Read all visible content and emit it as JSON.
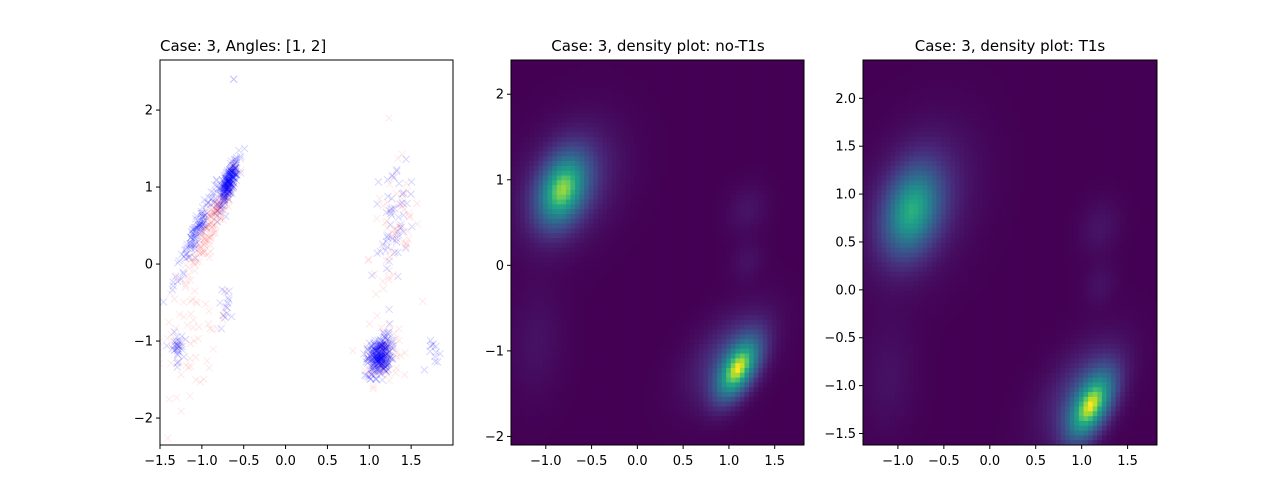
{
  "colors": {
    "series_red": "#ff0000",
    "series_blue": "#0000ff",
    "density_low": "#440154",
    "density_mid": "#21918c",
    "density_high": "#fde725"
  },
  "chart_data": [
    {
      "type": "scatter",
      "title": "Case: 3, Angles: [1, 2]",
      "xlabel": "",
      "ylabel": "",
      "xlim": [
        -1.5,
        2.0
      ],
      "ylim": [
        -2.35,
        2.65
      ],
      "xticks": [
        -1.5,
        -1.0,
        -0.5,
        0.0,
        0.5,
        1.0,
        1.5
      ],
      "xtick_labels": [
        "−1.5",
        "−1.0",
        "−0.5",
        "0.0",
        "0.5",
        "1.0",
        "1.5"
      ],
      "yticks": [
        -2,
        -1,
        0,
        1,
        2
      ],
      "ytick_labels": [
        "−2",
        "−1",
        "0",
        "1",
        "2"
      ],
      "marker": "x",
      "series": [
        {
          "color": "#ff0000",
          "clusters": [
            {
              "cx": -0.85,
              "cy": 0.6,
              "sx": 0.15,
              "sy": 0.35,
              "rho": 0.93,
              "n": 160
            },
            {
              "cx": 1.15,
              "cy": -1.2,
              "sx": 0.1,
              "sy": 0.17,
              "rho": 0.2,
              "n": 80
            },
            {
              "cx": -1.15,
              "cy": -0.85,
              "sx": 0.25,
              "sy": 0.4,
              "rho": 0.2,
              "n": 70
            },
            {
              "cx": 1.3,
              "cy": 0.4,
              "sx": 0.15,
              "sy": 0.5,
              "rho": 0.3,
              "n": 60
            }
          ]
        },
        {
          "color": "#0000ff",
          "clusters": [
            {
              "cx": -0.68,
              "cy": 1.05,
              "sx": 0.06,
              "sy": 0.15,
              "rho": 0.8,
              "n": 220
            },
            {
              "cx": -1.05,
              "cy": 0.45,
              "sx": 0.14,
              "sy": 0.35,
              "rho": 0.95,
              "n": 110
            },
            {
              "cx": 1.12,
              "cy": -1.2,
              "sx": 0.07,
              "sy": 0.13,
              "rho": 0.3,
              "n": 260
            },
            {
              "cx": -1.3,
              "cy": -1.1,
              "sx": 0.04,
              "sy": 0.1,
              "rho": 0.0,
              "n": 30
            },
            {
              "cx": 1.3,
              "cy": 0.55,
              "sx": 0.12,
              "sy": 0.45,
              "rho": 0.5,
              "n": 55
            },
            {
              "cx": -0.7,
              "cy": -0.5,
              "sx": 0.05,
              "sy": 0.12,
              "rho": 0.0,
              "n": 14
            },
            {
              "cx": 1.8,
              "cy": -1.2,
              "sx": 0.05,
              "sy": 0.1,
              "rho": 0.0,
              "n": 12
            }
          ]
        }
      ]
    },
    {
      "type": "heatmap",
      "title": "Case: 3, density plot: no-T1s",
      "xlabel": "",
      "ylabel": "",
      "xlim": [
        -1.38,
        1.82
      ],
      "ylim": [
        -2.1,
        2.4
      ],
      "xticks": [
        -1.0,
        -0.5,
        0.0,
        0.5,
        1.0,
        1.5
      ],
      "xtick_labels": [
        "−1.0",
        "−0.5",
        "0.0",
        "0.5",
        "1.0",
        "1.5"
      ],
      "yticks": [
        -2,
        -1,
        0,
        1,
        2
      ],
      "ytick_labels": [
        "−2",
        "−1",
        "0",
        "1",
        "2"
      ],
      "colormap": "viridis",
      "components": [
        {
          "cx": -0.82,
          "cy": 0.88,
          "sx": 0.18,
          "sy": 0.28,
          "rho": 0.3,
          "w": 0.85
        },
        {
          "cx": -0.75,
          "cy": 0.95,
          "sx": 0.35,
          "sy": 0.45,
          "rho": 0.3,
          "w": 0.25
        },
        {
          "cx": 1.1,
          "cy": -1.22,
          "sx": 0.16,
          "sy": 0.24,
          "rho": 0.55,
          "w": 1.0
        },
        {
          "cx": 1.0,
          "cy": -1.05,
          "sx": 0.3,
          "sy": 0.35,
          "rho": 0.5,
          "w": 0.25
        },
        {
          "cx": 1.2,
          "cy": 0.65,
          "sx": 0.15,
          "sy": 0.2,
          "rho": 0.2,
          "w": 0.08
        },
        {
          "cx": 1.2,
          "cy": 0.05,
          "sx": 0.12,
          "sy": 0.15,
          "rho": 0.2,
          "w": 0.07
        },
        {
          "cx": -1.1,
          "cy": -0.9,
          "sx": 0.2,
          "sy": 0.45,
          "rho": 0.1,
          "w": 0.07
        }
      ]
    },
    {
      "type": "heatmap",
      "title": "Case: 3, density plot: T1s",
      "xlabel": "",
      "ylabel": "",
      "xlim": [
        -1.38,
        1.82
      ],
      "ylim": [
        -1.62,
        2.4
      ],
      "xticks": [
        -1.0,
        -0.5,
        0.0,
        0.5,
        1.0,
        1.5
      ],
      "xtick_labels": [
        "−1.0",
        "−0.5",
        "0.0",
        "0.5",
        "1.0",
        "1.5"
      ],
      "yticks": [
        -1.5,
        -1.0,
        -0.5,
        0.0,
        0.5,
        1.0,
        1.5,
        2.0
      ],
      "ytick_labels": [
        "−1.5",
        "−1.0",
        "−0.5",
        "0.0",
        "0.5",
        "1.0",
        "1.5",
        "2.0"
      ],
      "colormap": "viridis",
      "components": [
        {
          "cx": -0.85,
          "cy": 0.82,
          "sx": 0.2,
          "sy": 0.3,
          "rho": 0.25,
          "w": 0.7
        },
        {
          "cx": -0.78,
          "cy": 0.9,
          "sx": 0.38,
          "sy": 0.5,
          "rho": 0.3,
          "w": 0.22
        },
        {
          "cx": 1.1,
          "cy": -1.22,
          "sx": 0.17,
          "sy": 0.24,
          "rho": 0.55,
          "w": 1.0
        },
        {
          "cx": 1.0,
          "cy": -1.05,
          "sx": 0.3,
          "sy": 0.35,
          "rho": 0.5,
          "w": 0.25
        },
        {
          "cx": 1.2,
          "cy": 0.65,
          "sx": 0.15,
          "sy": 0.2,
          "rho": 0.2,
          "w": 0.08
        },
        {
          "cx": 1.2,
          "cy": 0.05,
          "sx": 0.12,
          "sy": 0.15,
          "rho": 0.2,
          "w": 0.07
        },
        {
          "cx": -1.1,
          "cy": -0.9,
          "sx": 0.2,
          "sy": 0.4,
          "rho": 0.1,
          "w": 0.07
        }
      ]
    }
  ]
}
